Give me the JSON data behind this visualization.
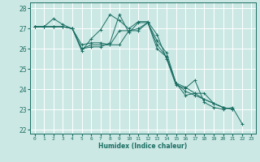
{
  "xlabel": "Humidex (Indice chaleur)",
  "xlim": [
    -0.5,
    23.5
  ],
  "ylim": [
    21.8,
    28.3
  ],
  "yticks": [
    22,
    23,
    24,
    25,
    26,
    27,
    28
  ],
  "xticks": [
    0,
    1,
    2,
    3,
    4,
    5,
    6,
    7,
    8,
    9,
    10,
    11,
    12,
    13,
    14,
    15,
    16,
    17,
    18,
    19,
    20,
    21,
    22,
    23
  ],
  "bg_color": "#cce8e4",
  "grid_color": "#ffffff",
  "line_color": "#1a6e63",
  "series": [
    [
      27.1,
      27.1,
      27.5,
      27.2,
      27.0,
      25.9,
      26.5,
      26.95,
      27.7,
      27.4,
      27.0,
      27.35,
      27.35,
      26.7,
      25.5,
      24.2,
      24.05,
      24.45,
      23.35,
      23.1,
      23.0,
      23.1,
      22.3,
      null
    ],
    [
      27.1,
      27.1,
      27.1,
      27.1,
      27.0,
      26.2,
      26.3,
      26.3,
      26.2,
      26.2,
      26.9,
      27.0,
      27.3,
      26.4,
      25.8,
      24.3,
      24.1,
      23.8,
      23.8,
      23.3,
      23.1,
      23.0,
      null,
      null
    ],
    [
      27.1,
      27.1,
      27.1,
      27.1,
      27.0,
      26.0,
      26.2,
      26.2,
      26.2,
      26.9,
      26.9,
      26.9,
      27.3,
      26.2,
      25.6,
      24.3,
      23.9,
      23.7,
      23.5,
      23.3,
      23.1,
      23.0,
      null,
      null
    ],
    [
      27.1,
      27.1,
      27.1,
      27.1,
      27.0,
      26.0,
      26.1,
      26.1,
      26.3,
      27.7,
      26.8,
      27.3,
      27.3,
      26.0,
      25.6,
      24.3,
      23.7,
      23.8,
      23.5,
      23.3,
      23.1,
      null,
      null,
      null
    ]
  ]
}
